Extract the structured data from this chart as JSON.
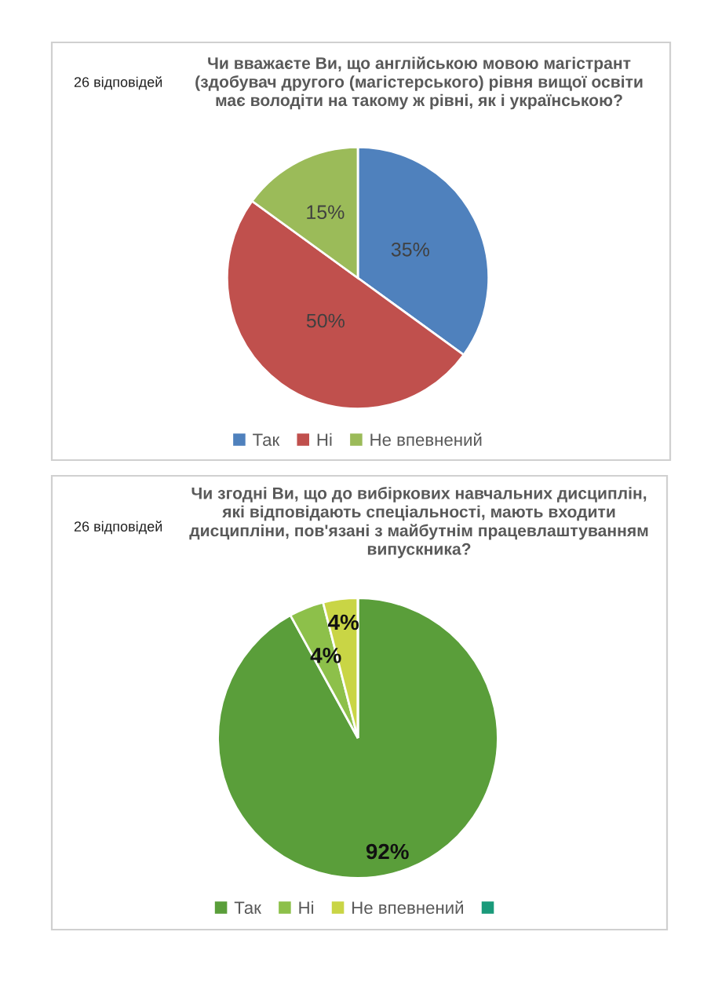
{
  "chart_data": [
    {
      "type": "pie",
      "title": "Чи вважаєте Ви, що англійською мовою магістрант\n(здобувач другого (магістерського) рівня вищої освіти\nмає володіти на такому ж рівні, як і українською?",
      "annotations": [
        "26 відповідей"
      ],
      "categories": [
        "Так",
        "Ні",
        "Не впевнений"
      ],
      "values": [
        35,
        50,
        15
      ],
      "colors": [
        "#4f81bd",
        "#c0504d",
        "#9bbb59"
      ],
      "value_labels": [
        "35%",
        "50%",
        "15%"
      ],
      "legend": "bottom"
    },
    {
      "type": "pie",
      "title": "Чи згодні Ви, що до вибіркових навчальних дисциплін,\nякі відповідають спеціальності, мають входити\nдисципліни, пов'язані з майбутнім працевлаштуванням\nвипускника?",
      "annotations": [
        "26 відповідей"
      ],
      "categories": [
        "Так",
        "Ні",
        "Не впевнений",
        null
      ],
      "values": [
        92,
        4,
        4,
        0
      ],
      "colors": [
        "#5a9e3a",
        "#8dc04a",
        "#c9d545",
        "#1a9a7a"
      ],
      "value_labels": [
        "92%",
        "4%",
        "4%",
        null
      ],
      "legend": "bottom"
    }
  ]
}
